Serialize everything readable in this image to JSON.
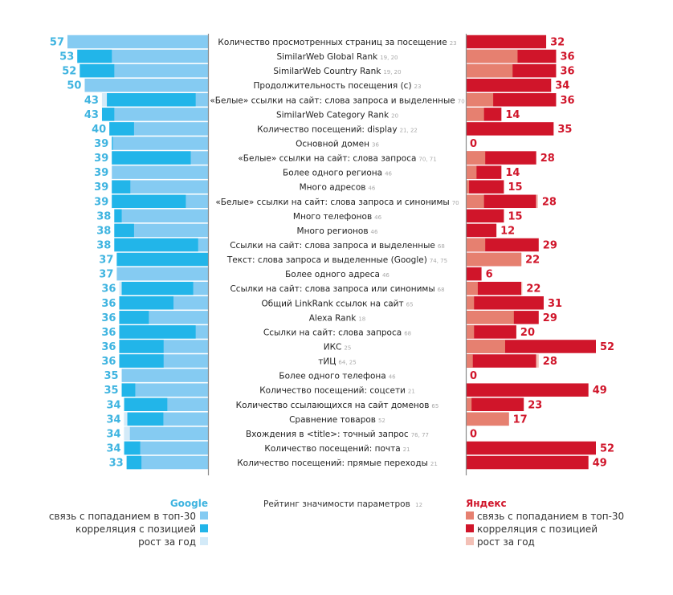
{
  "chart_data": {
    "type": "bar",
    "orientation": "horizontal-diverging",
    "title": "Рейтинг значимости параметров",
    "title_ref": "12",
    "xlim_google": [
      0,
      57
    ],
    "xlim_yandex": [
      0,
      52
    ],
    "grid": false,
    "legend_placement": "bottom",
    "colors": {
      "google_top30": "#85cbf2",
      "google_corr": "#22b5e9",
      "google_growth": "#d3eaf8",
      "google_text": "#3fb4e0",
      "yandex_top30": "#e68070",
      "yandex_corr": "#d0152a",
      "yandex_growth": "#f3c0b6",
      "yandex_text": "#d0152a",
      "axis": "#8a8a8a"
    },
    "legend": {
      "google": {
        "title": "Google",
        "items": [
          "связь с попаданием в топ-30",
          "корреляция с позицией",
          "рост за год"
        ]
      },
      "yandex": {
        "title": "Яндекс",
        "items": [
          "связь с попаданием в топ-30",
          "корреляция с позицией",
          "рост за год"
        ]
      }
    },
    "rows": [
      {
        "label": "Количество просмотренных страниц за посещение",
        "ref": "23",
        "google": {
          "value": 57,
          "corr": 0,
          "growth": 0
        },
        "yandex": {
          "value": 32,
          "top30": 0,
          "growth": 0
        }
      },
      {
        "label": "SimilarWeb Global Rank",
        "ref": "19, 20",
        "google": {
          "value": 53,
          "corr": 14,
          "growth": 0
        },
        "yandex": {
          "value": 36,
          "top30": 20.5,
          "growth": 0
        }
      },
      {
        "label": "SimilarWeb Country Rank",
        "ref": "19, 20",
        "google": {
          "value": 52,
          "corr": 14,
          "growth": 0
        },
        "yandex": {
          "value": 36,
          "top30": 18.5,
          "growth": 0
        }
      },
      {
        "label": "Продолжительность посещения (с)",
        "ref": "23",
        "google": {
          "value": 50,
          "corr": 0,
          "growth": 0
        },
        "yandex": {
          "value": 34,
          "top30": 0,
          "growth": 0
        }
      },
      {
        "label": "«Белые» ссылки на сайт: слова запроса и выделенные",
        "ref": "70",
        "google": {
          "value": 43,
          "corr": 36,
          "growth": 2
        },
        "yandex": {
          "value": 36,
          "top30": 10.7,
          "growth": 0
        }
      },
      {
        "label": "SimilarWeb Category Rank",
        "ref": "20",
        "google": {
          "value": 43,
          "corr": 5,
          "growth": 0
        },
        "yandex": {
          "value": 14,
          "top30": 7,
          "growth": 0
        }
      },
      {
        "label": "Количество посещений: display",
        "ref": "21, 22",
        "google": {
          "value": 40,
          "corr": 10,
          "growth": 0
        },
        "yandex": {
          "value": 35,
          "top30": 0,
          "growth": 0
        }
      },
      {
        "label": "Основной домен",
        "ref": "36",
        "google": {
          "value": 39,
          "corr": 0.4,
          "growth": 0
        },
        "yandex": {
          "value": 0,
          "top30": 0,
          "growth": 0
        }
      },
      {
        "label": "«Белые» ссылки на сайт: слова запроса",
        "ref": "70, 71",
        "google": {
          "value": 39,
          "corr": 32,
          "growth": 0
        },
        "yandex": {
          "value": 28,
          "top30": 7.5,
          "growth": 0
        }
      },
      {
        "label": "Более одного региона",
        "ref": "46",
        "google": {
          "value": 39,
          "corr": 0,
          "growth": 0
        },
        "yandex": {
          "value": 14,
          "top30": 4,
          "growth": 0
        }
      },
      {
        "label": "Много адресов",
        "ref": "46",
        "google": {
          "value": 39,
          "corr": 7.5,
          "growth": 0
        },
        "yandex": {
          "value": 15,
          "top30": 1,
          "growth": 0
        }
      },
      {
        "label": "«Белые» ссылки на сайт: слова запроса и синонимы",
        "ref": "70",
        "google": {
          "value": 39,
          "corr": 30,
          "growth": 0
        },
        "yandex": {
          "value": 28,
          "top30": 7,
          "growth": 0.7
        }
      },
      {
        "label": "Много телефонов",
        "ref": "46",
        "google": {
          "value": 38,
          "corr": 3,
          "growth": 0
        },
        "yandex": {
          "value": 15,
          "top30": 0,
          "growth": 0
        }
      },
      {
        "label": "Много регионов",
        "ref": "46",
        "google": {
          "value": 38,
          "corr": 8,
          "growth": 0
        },
        "yandex": {
          "value": 12,
          "top30": 0,
          "growth": 0
        }
      },
      {
        "label": "Ссылки на сайт: слова запроса и выделенные",
        "ref": "68",
        "google": {
          "value": 38,
          "corr": 34,
          "growth": 0
        },
        "yandex": {
          "value": 29,
          "top30": 7.5,
          "growth": 0
        }
      },
      {
        "label": "Текст: слова запроса и выделенные (Google)",
        "ref": "74, 75",
        "google": {
          "value": 37,
          "corr": 37,
          "growth": 0
        },
        "yandex": {
          "value": 22,
          "top30": 22,
          "growth": 0
        }
      },
      {
        "label": "Более одного адреса",
        "ref": "46",
        "google": {
          "value": 37,
          "corr": 0,
          "growth": 0
        },
        "yandex": {
          "value": 6,
          "top30": 0,
          "growth": 0
        }
      },
      {
        "label": "Ссылки на сайт: слова запроса или синонимы",
        "ref": "68",
        "google": {
          "value": 36,
          "corr": 29,
          "growth": 1
        },
        "yandex": {
          "value": 22,
          "top30": 4.5,
          "growth": 0.4
        }
      },
      {
        "label": "Общий LinkRank ссылок на сайт",
        "ref": "65",
        "google": {
          "value": 36,
          "corr": 22,
          "growth": 0
        },
        "yandex": {
          "value": 31,
          "top30": 3,
          "growth": 0
        }
      },
      {
        "label": "Alexa Rank",
        "ref": "18",
        "google": {
          "value": 36,
          "corr": 12,
          "growth": 0
        },
        "yandex": {
          "value": 29,
          "top30": 19,
          "growth": 0
        }
      },
      {
        "label": "Ссылки на сайт: слова запроса",
        "ref": "68",
        "google": {
          "value": 36,
          "corr": 31,
          "growth": 0
        },
        "yandex": {
          "value": 20,
          "top30": 3,
          "growth": 0
        }
      },
      {
        "label": "ИКС",
        "ref": "25",
        "google": {
          "value": 36,
          "corr": 18,
          "growth": 0
        },
        "yandex": {
          "value": 52,
          "top30": 15.5,
          "growth": 0
        }
      },
      {
        "label": "тИЦ",
        "ref": "64, 25",
        "google": {
          "value": 36,
          "corr": 18,
          "growth": 0
        },
        "yandex": {
          "value": 28,
          "top30": 2.5,
          "growth": 1
        }
      },
      {
        "label": "Более одного телефона",
        "ref": "46",
        "google": {
          "value": 35,
          "corr": 0,
          "growth": 0
        },
        "yandex": {
          "value": 0,
          "top30": 0,
          "growth": 0
        }
      },
      {
        "label": "Количество посещений: соцсети",
        "ref": "21",
        "google": {
          "value": 35,
          "corr": 5.5,
          "growth": 0
        },
        "yandex": {
          "value": 49,
          "top30": 0,
          "growth": 0
        }
      },
      {
        "label": "Количество ссылающихся на сайт доменов",
        "ref": "65",
        "google": {
          "value": 34,
          "corr": 17.5,
          "growth": 0
        },
        "yandex": {
          "value": 23,
          "top30": 2,
          "growth": 0
        }
      },
      {
        "label": "Сравнение товаров",
        "ref": "52",
        "google": {
          "value": 34,
          "corr": 14.6,
          "growth": 1.3
        },
        "yandex": {
          "value": 17,
          "top30": 17,
          "growth": 0
        }
      },
      {
        "label": "Вхождения в <title>: точный запрос",
        "ref": "76, 77",
        "google": {
          "value": 34,
          "corr": 0,
          "growth": 2.3
        },
        "yandex": {
          "value": 0,
          "top30": 0,
          "growth": 0
        }
      },
      {
        "label": "Количество посещений: почта",
        "ref": "21",
        "google": {
          "value": 34,
          "corr": 6.5,
          "growth": 0
        },
        "yandex": {
          "value": 52,
          "top30": 0,
          "growth": 0
        }
      },
      {
        "label": "Количество посещений: прямые переходы",
        "ref": "21",
        "google": {
          "value": 33,
          "corr": 6,
          "growth": 0
        },
        "yandex": {
          "value": 49,
          "top30": 0,
          "growth": 0
        }
      }
    ]
  }
}
